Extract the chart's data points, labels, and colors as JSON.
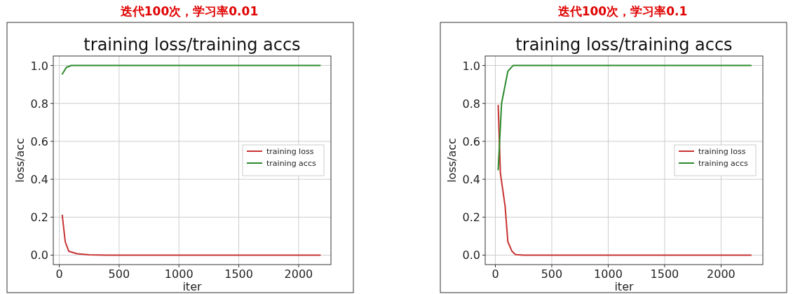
{
  "chart_data": [
    {
      "type": "line",
      "title": "迭代100次，学习率0.01",
      "subtitle": "training loss/training accs",
      "xlabel": "iter",
      "ylabel": "loss/acc",
      "xlim": [
        -50,
        2270
      ],
      "ylim": [
        -0.05,
        1.05
      ],
      "xticks": [
        0,
        500,
        1000,
        1500,
        2000
      ],
      "yticks": [
        {
          "value": 0,
          "label": "0.0"
        },
        {
          "value": 0.2,
          "label": "0.2"
        },
        {
          "value": 0.4,
          "label": "0.4"
        },
        {
          "value": 0.6,
          "label": "0.6"
        },
        {
          "value": 0.8,
          "label": "0.8"
        },
        {
          "value": 1,
          "label": "1.0"
        }
      ],
      "grid": true,
      "legend": "right",
      "series": [
        {
          "name": "training loss",
          "color": "#c83232",
          "x": [
            25,
            50,
            80,
            150,
            250,
            400,
            2180
          ],
          "values": [
            0.21,
            0.07,
            0.02,
            0.007,
            0.002,
            0,
            0
          ]
        },
        {
          "name": "training accs",
          "color": "#2a8a2a",
          "x": [
            25,
            60,
            100,
            2180
          ],
          "values": [
            0.955,
            0.99,
            1.0,
            1.0
          ]
        }
      ]
    },
    {
      "type": "line",
      "title": "迭代100次，学习率0.1",
      "subtitle": "training loss/training accs",
      "xlabel": "iter",
      "ylabel": "loss/acc",
      "xlim": [
        -90,
        2370
      ],
      "ylim": [
        -0.05,
        1.05
      ],
      "xticks": [
        0,
        500,
        1000,
        1500,
        2000
      ],
      "yticks": [
        {
          "value": 0,
          "label": "0.0"
        },
        {
          "value": 0.2,
          "label": "0.2"
        },
        {
          "value": 0.4,
          "label": "0.4"
        },
        {
          "value": 0.6,
          "label": "0.6"
        },
        {
          "value": 0.8,
          "label": "0.8"
        },
        {
          "value": 1,
          "label": "1.0"
        }
      ],
      "grid": true,
      "legend": "right",
      "series": [
        {
          "name": "training loss",
          "color": "#c83232",
          "x": [
            25,
            45,
            86,
            111,
            148,
            179,
            250,
            2265
          ],
          "values": [
            0.79,
            0.43,
            0.26,
            0.07,
            0.02,
            0.003,
            0,
            0
          ]
        },
        {
          "name": "training accs",
          "color": "#2a8a2a",
          "x": [
            25,
            55,
            111,
            157,
            179,
            2265
          ],
          "values": [
            0.45,
            0.8,
            0.97,
            1.0,
            1.0,
            1.0
          ]
        }
      ]
    }
  ]
}
